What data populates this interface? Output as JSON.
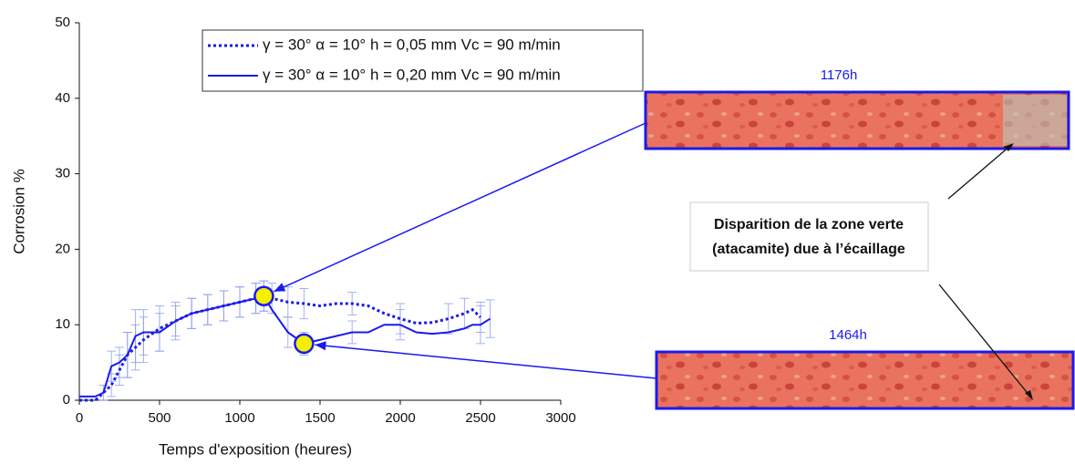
{
  "chart_data": {
    "type": "line",
    "xlabel": "Temps d'exposition (heures)",
    "ylabel": "Corrosion %",
    "xlim": [
      0,
      3000
    ],
    "ylim": [
      0,
      50
    ],
    "xticks": [
      0,
      500,
      1000,
      1500,
      2000,
      2500,
      3000
    ],
    "yticks": [
      0,
      10,
      20,
      30,
      40,
      50
    ],
    "x": [
      0,
      100,
      150,
      200,
      250,
      300,
      350,
      400,
      500,
      600,
      700,
      800,
      900,
      1000,
      1100,
      1150,
      1200,
      1300,
      1400,
      1500,
      1600,
      1700,
      1800,
      1900,
      2000,
      2100,
      2200,
      2300,
      2400,
      2450,
      2500,
      2560
    ],
    "series": [
      {
        "name": "γ = 30° α = 10° h = 0,05 mm Vc = 90 m/min",
        "color": "#1a1aee",
        "dash": true,
        "values": [
          0,
          0,
          1,
          2,
          4,
          6,
          7,
          8,
          9.5,
          10.5,
          11.5,
          12,
          12.5,
          13,
          13.5,
          13.8,
          13.5,
          13,
          12.8,
          12.5,
          12.8,
          12.8,
          12.5,
          11.5,
          10.8,
          10.2,
          10.3,
          10.8,
          11.5,
          12,
          11,
          null
        ],
        "errors": [
          null,
          null,
          1,
          1.5,
          2,
          3,
          3,
          3,
          3,
          2.5,
          2,
          2,
          2,
          2,
          2,
          2,
          2,
          2,
          2,
          null,
          null,
          1.5,
          null,
          null,
          2,
          null,
          null,
          2,
          2,
          null,
          2,
          null
        ]
      },
      {
        "name": "γ = 30° α = 10° h = 0,20 mm Vc = 90 m/min",
        "color": "#1a1aee",
        "dash": false,
        "values": [
          0.5,
          0.5,
          1,
          4.5,
          5,
          6,
          8.5,
          9,
          9,
          10.5,
          11.5,
          12,
          12.5,
          13,
          13.5,
          13.8,
          12,
          9,
          7.5,
          8,
          8.5,
          9,
          9,
          10,
          10,
          9,
          8.8,
          9,
          9.5,
          10,
          10,
          10.8
        ],
        "errors": [
          null,
          null,
          null,
          2,
          2,
          3,
          3.5,
          3,
          2.5,
          2,
          2,
          2,
          2,
          2,
          2,
          2,
          null,
          2,
          1.5,
          null,
          null,
          1.5,
          null,
          null,
          2,
          null,
          null,
          null,
          null,
          null,
          2.5,
          2.5
        ]
      }
    ],
    "highlights": [
      {
        "x": 1150,
        "y": 13.8,
        "label": "1176h"
      },
      {
        "x": 1400,
        "y": 7.5,
        "label": "1464h"
      }
    ],
    "annotation": [
      "Disparition de la zone verte",
      "(atacamite) due à l’écaillage"
    ]
  }
}
